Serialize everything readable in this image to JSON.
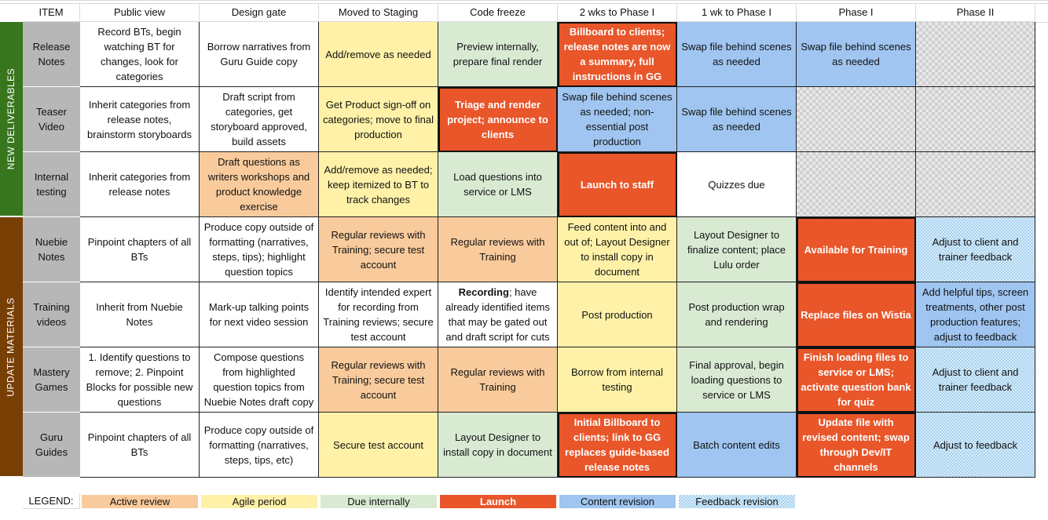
{
  "header": {
    "item": "ITEM",
    "columns": [
      "Public view",
      "Design gate",
      "Moved to Staging",
      "Code freeze",
      "2 wks to Phase I",
      "1 wk to Phase I",
      "Phase I",
      "Phase II"
    ]
  },
  "groups": [
    {
      "label": "NEW DELIVERABLES",
      "color": "#38761d"
    },
    {
      "label": "UPDATE MATERIALS",
      "color": "#783f04"
    }
  ],
  "colors": {
    "active_review": "#f9cb9c",
    "agile_period": "#fff2a8",
    "due_internally": "#d9ead3",
    "launch": "#e8562a",
    "content_revision": "#9fc5f0",
    "feedback_revision": "#cfe2f3",
    "item_label": "#b7b7b7",
    "white": "#ffffff"
  },
  "rows": [
    {
      "label": "Release Notes",
      "cells": [
        {
          "text": "Record BTs, begin watching BT for changes, look for categories",
          "style": "white"
        },
        {
          "text": "Borrow narratives from Guru Guide copy",
          "style": "white"
        },
        {
          "text": "Add/remove as needed",
          "style": "agile_period"
        },
        {
          "text": "Preview internally, prepare final render",
          "style": "due_internally"
        },
        {
          "text": "Billboard to clients; release notes are now a summary, full instructions in GG",
          "style": "launch"
        },
        {
          "text": "Swap file behind scenes as needed",
          "style": "content_revision"
        },
        {
          "text": "Swap file behind scenes as needed",
          "style": "content_revision"
        },
        {
          "text": "",
          "style": "none"
        }
      ]
    },
    {
      "label": "Teaser Video",
      "cells": [
        {
          "text": "Inherit categories from release notes, brainstorm storyboards",
          "style": "white"
        },
        {
          "text": "Draft script from categories, get storyboard approved, build assets",
          "style": "white"
        },
        {
          "text": "Get Product sign-off on categories; move to final production",
          "style": "agile_period"
        },
        {
          "text": "Triage and render project; announce to clients",
          "style": "launch"
        },
        {
          "text": "Swap file behind scenes as needed; non-essential post production",
          "style": "content_revision"
        },
        {
          "text": "Swap file behind scenes as needed",
          "style": "content_revision"
        },
        {
          "text": "",
          "style": "none"
        },
        {
          "text": "",
          "style": "none"
        }
      ]
    },
    {
      "label": "Internal testing",
      "cells": [
        {
          "text": "Inherit categories from release notes",
          "style": "white"
        },
        {
          "text": "Draft questions as writers workshops and product knowledge exercise",
          "style": "active_review"
        },
        {
          "text": "Add/remove as needed; keep itemized to BT to track changes",
          "style": "agile_period"
        },
        {
          "text": "Load questions into service or LMS",
          "style": "due_internally"
        },
        {
          "text": "Launch to staff",
          "style": "launch"
        },
        {
          "text": "Quizzes due",
          "style": "white"
        },
        {
          "text": "",
          "style": "none"
        },
        {
          "text": "",
          "style": "none"
        }
      ]
    },
    {
      "label": "Nuebie Notes",
      "cells": [
        {
          "text": "Pinpoint chapters of all BTs",
          "style": "white"
        },
        {
          "text": "Produce copy outside of formatting (narratives, steps, tips); highlight question topics",
          "style": "white"
        },
        {
          "text": "Regular reviews with Training; secure test account",
          "style": "active_review"
        },
        {
          "text": "Regular reviews with Training",
          "style": "active_review"
        },
        {
          "text": "Feed content into and out of; Layout Designer to install copy in document",
          "style": "agile_period"
        },
        {
          "text": "Layout Designer to finalize content; place Lulu order",
          "style": "due_internally"
        },
        {
          "text": "Available for Training",
          "style": "launch"
        },
        {
          "text": "Adjust to client and trainer feedback",
          "style": "feedback_revision"
        }
      ]
    },
    {
      "label": "Training videos",
      "cells": [
        {
          "text": "Inherit from Nuebie Notes",
          "style": "white"
        },
        {
          "text": "Mark-up talking points for next video session",
          "style": "white"
        },
        {
          "text": "Identify intended expert for recording from Training reviews; secure test account",
          "style": "white"
        },
        {
          "text": "Recording; have already identified items that may be gated out and draft script for cuts",
          "style": "white",
          "bold_prefix": "Recording"
        },
        {
          "text": "Post production",
          "style": "agile_period"
        },
        {
          "text": "Post production wrap and rendering",
          "style": "due_internally"
        },
        {
          "text": "Replace files on Wistia",
          "style": "launch"
        },
        {
          "text": "Add helpful tips, screen treatments, other post production features; adjust to feedback",
          "style": "content_revision"
        }
      ]
    },
    {
      "label": "Mastery Games",
      "cells": [
        {
          "text": "1. Identify questions to remove; 2. Pinpoint Blocks for possible new questions",
          "style": "white"
        },
        {
          "text": "Compose questions from highlighted question topics from Nuebie Notes draft copy",
          "style": "white"
        },
        {
          "text": "Regular reviews with Training; secure test account",
          "style": "active_review"
        },
        {
          "text": "Regular reviews with Training",
          "style": "active_review"
        },
        {
          "text": "Borrow from internal testing",
          "style": "agile_period"
        },
        {
          "text": "Final approval, begin loading questions to service or LMS",
          "style": "due_internally"
        },
        {
          "text": "Finish loading files to service or LMS; activate question bank for quiz",
          "style": "launch"
        },
        {
          "text": "Adjust to client and trainer feedback",
          "style": "feedback_revision"
        }
      ]
    },
    {
      "label": "Guru Guides",
      "cells": [
        {
          "text": "Pinpoint chapters of all BTs",
          "style": "white"
        },
        {
          "text": "Produce copy outside of formatting (narratives, steps, tips, etc)",
          "style": "white"
        },
        {
          "text": "Secure test account",
          "style": "agile_period"
        },
        {
          "text": "Layout Designer to install copy in document",
          "style": "due_internally"
        },
        {
          "text": "Initial Billboard to clients; link to GG replaces guide-based release notes",
          "style": "launch"
        },
        {
          "text": "Batch content edits",
          "style": "content_revision"
        },
        {
          "text": "Update file with revised content; swap through Dev/IT channels",
          "style": "launch"
        },
        {
          "text": "Adjust to feedback",
          "style": "feedback_revision"
        }
      ]
    }
  ],
  "legend": {
    "label": "LEGEND:",
    "items": [
      {
        "text": "Active review",
        "style": "active_review"
      },
      {
        "text": "Agile period",
        "style": "agile_period"
      },
      {
        "text": "Due internally",
        "style": "due_internally"
      },
      {
        "text": "Launch",
        "style": "launch"
      },
      {
        "text": "Content revision",
        "style": "content_revision"
      },
      {
        "text": "Feedback revision",
        "style": "feedback_revision"
      }
    ]
  }
}
